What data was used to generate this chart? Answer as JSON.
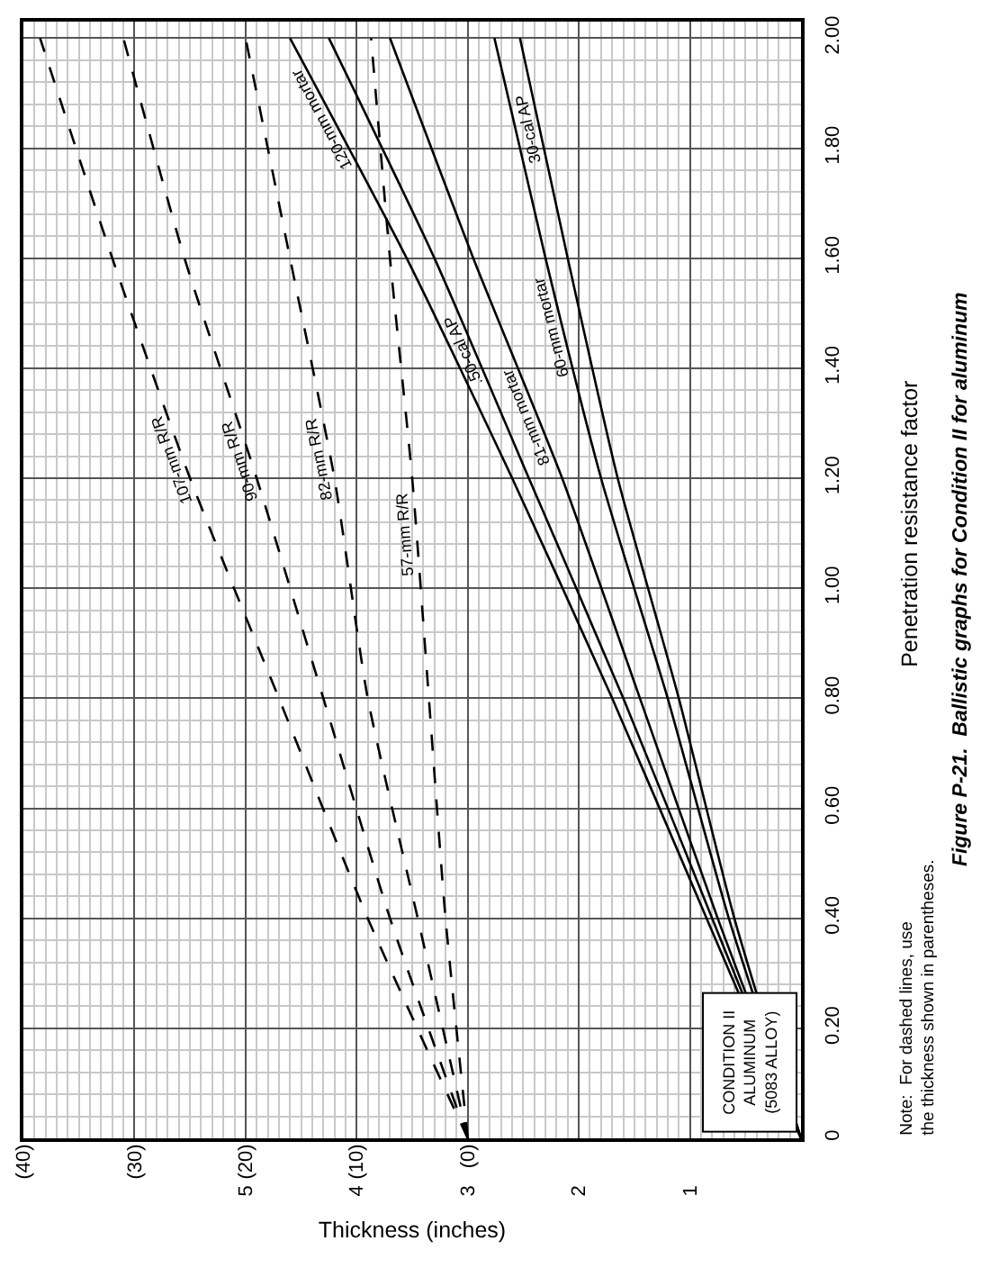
{
  "chart_data": {
    "type": "line",
    "title": "Figure P-21.  Ballistic graphs for Condition II for aluminum",
    "xlabel": "Thickness (inches)",
    "ylabel": "Penetration resistance factor",
    "xlim": [
      7,
      0
    ],
    "ylim": [
      0,
      2.03
    ],
    "xticks": [
      1,
      2,
      3,
      4,
      5,
      {
        "value": 6,
        "label": null
      },
      {
        "value": 7,
        "label": null
      }
    ],
    "x2lim": [
      40,
      -30
    ],
    "x2ticks": [
      {
        "value": 0,
        "label": "(0)"
      },
      {
        "value": 10,
        "label": "(10)"
      },
      {
        "value": 20,
        "label": "(20)"
      },
      {
        "value": 30,
        "label": "(30)"
      },
      {
        "value": 40,
        "label": "(40)"
      }
    ],
    "yticks": [
      {
        "value": 0,
        "label": "0"
      },
      {
        "value": 0.2,
        "label": "0.20"
      },
      {
        "value": 0.4,
        "label": "0.40"
      },
      {
        "value": 0.6,
        "label": "0.60"
      },
      {
        "value": 0.8,
        "label": "0.80"
      },
      {
        "value": 1.0,
        "label": "1.00"
      },
      {
        "value": 1.2,
        "label": "1.20"
      },
      {
        "value": 1.4,
        "label": "1.40"
      },
      {
        "value": 1.6,
        "label": "1.60"
      },
      {
        "value": 1.8,
        "label": "1.80"
      },
      {
        "value": 2.0,
        "label": "2.00"
      }
    ],
    "grid": true,
    "legend": false,
    "marker": "none",
    "annotations": [
      "CONDITION II\nALUMINUM\n(5083 ALLOY)",
      "Note:  For dashed lines, use\nthe thickness shown in parentheses."
    ],
    "series": [
      {
        "name": "107-mm R/R",
        "color": "#000000",
        "line_style": "dashed",
        "x": [
          3,
          3.9,
          4.7,
          5.5,
          6.2,
          6.85
        ],
        "values": [
          0,
          0.4,
          0.8,
          1.2,
          1.6,
          2.0
        ]
      },
      {
        "name": "90-mm R/R",
        "color": "#000000",
        "line_style": "dashed",
        "x": [
          3,
          3.7,
          4.3,
          4.9,
          5.55,
          6.1
        ],
        "values": [
          0,
          0.4,
          0.8,
          1.2,
          1.6,
          2.0
        ]
      },
      {
        "name": "82-mm R/R",
        "color": "#000000",
        "line_style": "dashed",
        "x": [
          3,
          3.45,
          3.9,
          4.2,
          4.6,
          5.0
        ],
        "values": [
          0,
          0.4,
          0.8,
          1.2,
          1.6,
          2.0
        ]
      },
      {
        "name": "57-mm R/R",
        "color": "#000000",
        "line_style": "dashed",
        "x": [
          3,
          3.2,
          3.35,
          3.5,
          3.7,
          3.87
        ],
        "values": [
          0,
          0.4,
          0.8,
          1.2,
          1.6,
          2.0
        ]
      },
      {
        "name": "120-mm mortar",
        "color": "#000000",
        "line_style": "solid",
        "x": [
          0,
          0.85,
          1.7,
          2.6,
          3.55,
          4.6
        ],
        "values": [
          0,
          0.4,
          0.8,
          1.2,
          1.6,
          2.0
        ]
      },
      {
        "name": ".50-cal AP",
        "color": "#000000",
        "line_style": "solid",
        "x": [
          0,
          0.8,
          1.6,
          2.45,
          3.3,
          4.25
        ],
        "values": [
          0,
          0.4,
          0.8,
          1.2,
          1.6,
          2.0
        ]
      },
      {
        "name": "81-mm mortar",
        "color": "#000000",
        "line_style": "solid",
        "x": [
          0,
          0.75,
          1.45,
          2.15,
          2.95,
          3.7
        ],
        "values": [
          0,
          0.4,
          0.8,
          1.2,
          1.6,
          2.0
        ]
      },
      {
        "name": "60-mm mortar",
        "color": "#000000",
        "line_style": "solid",
        "x": [
          0,
          0.65,
          1.2,
          1.8,
          2.3,
          2.76
        ],
        "values": [
          0,
          0.4,
          0.8,
          1.2,
          1.6,
          2.0
        ]
      },
      {
        "name": "30-cal AP",
        "color": "#000000",
        "line_style": "solid",
        "x": [
          0,
          0.6,
          1.1,
          1.65,
          2.1,
          2.53
        ],
        "values": [
          0,
          0.4,
          0.8,
          1.2,
          1.6,
          2.0
        ]
      }
    ]
  }
}
